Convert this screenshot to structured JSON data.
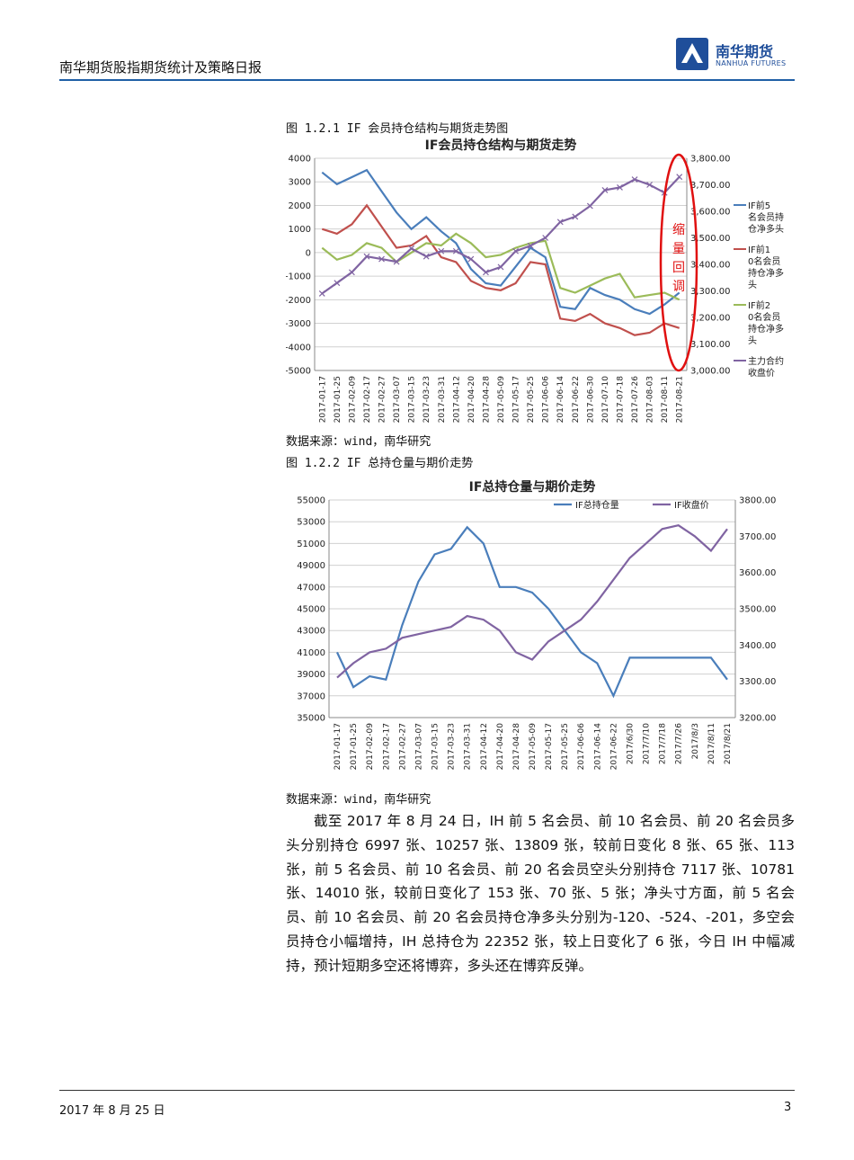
{
  "header": {
    "title": "南华期货股指期货统计及策略日报",
    "logo_text": "南华期货",
    "logo_sub": "NANHUA FUTURES"
  },
  "figure1": {
    "caption": "图 1.2.1 IF 会员持仓结构与期货走势图",
    "source": "数据来源：wind，南华研究",
    "annotation": [
      "缩",
      "量",
      "回",
      "调"
    ],
    "annotation_color": "#e01010"
  },
  "figure2": {
    "caption": "图 1.2.2 IF 总持仓量与期价走势",
    "source": "数据来源：wind，南华研究"
  },
  "paragraph": "截至 2017 年 8 月 24 日，IH 前 5 名会员、前 10 名会员、前 20 名会员多头分别持仓 6997 张、10257 张、13809 张，较前日变化 8 张、65 张、113 张，前 5 名会员、前 10 名会员、前 20 名会员空头分别持仓 7117 张、10781 张、14010 张，较前日变化了 153 张、70 张、5 张；净头寸方面，前 5 名会员、前 10 名会员、前 20 名会员持仓净多头分别为-120、-524、-201，多空会员持仓小幅增持，IH 总持仓为 22352 张，较上日变化了 6 张，今日 IH 中幅减持，预计短期多空还将博弈，多头还在博弈反弹。",
  "footer": {
    "date": "2017 年 8 月 25 日",
    "page": "3"
  },
  "chart_data": [
    {
      "type": "line",
      "title": "IF会员持仓结构与期货走势",
      "left_axis": {
        "ylim": [
          -5000,
          4000
        ],
        "ticks": [
          -5000,
          -4000,
          -3000,
          -2000,
          -1000,
          0,
          1000,
          2000,
          3000,
          4000
        ]
      },
      "right_axis": {
        "ylim": [
          3000,
          3800
        ],
        "ticks": [
          "3,000.00",
          "3,100.00",
          "3,200.00",
          "3,300.00",
          "3,400.00",
          "3,500.00",
          "3,600.00",
          "3,700.00",
          "3,800.00"
        ]
      },
      "categories": [
        "2017-01-17",
        "2017-01-25",
        "2017-02-09",
        "2017-02-17",
        "2017-02-27",
        "2017-03-07",
        "2017-03-15",
        "2017-03-23",
        "2017-03-31",
        "2017-04-12",
        "2017-04-20",
        "2017-04-28",
        "2017-05-09",
        "2017-05-17",
        "2017-05-25",
        "2017-06-06",
        "2017-06-14",
        "2017-06-22",
        "2017-06-30",
        "2017-07-10",
        "2017-07-18",
        "2017-07-26",
        "2017-08-03",
        "2017-08-11",
        "2017-08-21"
      ],
      "grid": true,
      "legend_position": "right",
      "series": [
        {
          "name": "IF前5名会员持仓净多头",
          "axis": "left",
          "color": "#4a7ebb",
          "values": [
            3400,
            2900,
            3200,
            3500,
            2600,
            1700,
            1000,
            1500,
            900,
            400,
            -700,
            -1300,
            -1400,
            -600,
            200,
            -200,
            -2300,
            -2400,
            -1500,
            -1800,
            -2000,
            -2400,
            -2600,
            -2200,
            -1700
          ]
        },
        {
          "name": "IF前10名会员持仓净多头",
          "axis": "left",
          "color": "#c0504d",
          "values": [
            1000,
            800,
            1200,
            2000,
            1100,
            200,
            300,
            700,
            -200,
            -400,
            -1200,
            -1500,
            -1600,
            -1300,
            -400,
            -500,
            -2800,
            -2900,
            -2600,
            -3000,
            -3200,
            -3500,
            -3400,
            -3000,
            -3200
          ]
        },
        {
          "name": "IF前20名会员持仓净多头",
          "axis": "left",
          "color": "#9bbb59",
          "values": [
            200,
            -300,
            -100,
            400,
            200,
            -400,
            0,
            400,
            300,
            800,
            400,
            -200,
            -100,
            200,
            400,
            500,
            -1500,
            -1700,
            -1400,
            -1100,
            -900,
            -1900,
            -1800,
            -1700,
            -2000
          ]
        },
        {
          "name": "主力合约收盘价",
          "axis": "right",
          "color": "#8064a2",
          "values": [
            3290,
            3330,
            3370,
            3430,
            3420,
            3410,
            3460,
            3430,
            3450,
            3450,
            3420,
            3370,
            3390,
            3450,
            3470,
            3500,
            3560,
            3580,
            3620,
            3680,
            3690,
            3720,
            3700,
            3670,
            3730
          ]
        }
      ]
    },
    {
      "type": "line",
      "title": "IF总持仓量与期价走势",
      "left_axis": {
        "ylim": [
          35000,
          55000
        ],
        "ticks": [
          35000,
          37000,
          39000,
          41000,
          43000,
          45000,
          47000,
          49000,
          51000,
          53000,
          55000
        ]
      },
      "right_axis": {
        "ylim": [
          3200,
          3800
        ],
        "ticks": [
          "3200.00",
          "3300.00",
          "3400.00",
          "3500.00",
          "3600.00",
          "3700.00",
          "3800.00"
        ]
      },
      "categories": [
        "2017-01-17",
        "2017-01-25",
        "2017-02-09",
        "2017-02-17",
        "2017-02-27",
        "2017-03-07",
        "2017-03-15",
        "2017-03-23",
        "2017-03-31",
        "2017-04-12",
        "2017-04-20",
        "2017-04-28",
        "2017-05-09",
        "2017-05-17",
        "2017-05-25",
        "2017-06-06",
        "2017-06-14",
        "2017-06-22",
        "2017/6/30",
        "2017/7/10",
        "2017/7/18",
        "2017/7/26",
        "2017/8/3",
        "2017/8/11",
        "2017/8/21"
      ],
      "grid": true,
      "legend_position": "top",
      "series": [
        {
          "name": "IF总持仓量",
          "axis": "left",
          "color": "#4a7ebb",
          "values": [
            41000,
            37800,
            38800,
            38500,
            43500,
            47500,
            50000,
            50500,
            52500,
            51000,
            47000,
            47000,
            46500,
            45000,
            43000,
            41000,
            40000,
            37000,
            40500,
            40500,
            40500,
            40500,
            40500,
            40500,
            38500
          ]
        },
        {
          "name": "IF收盘价",
          "axis": "right",
          "color": "#8064a2",
          "values": [
            3310,
            3350,
            3380,
            3390,
            3420,
            3430,
            3440,
            3450,
            3480,
            3470,
            3440,
            3380,
            3360,
            3410,
            3440,
            3470,
            3520,
            3580,
            3640,
            3680,
            3720,
            3730,
            3700,
            3660,
            3720
          ]
        }
      ]
    }
  ]
}
